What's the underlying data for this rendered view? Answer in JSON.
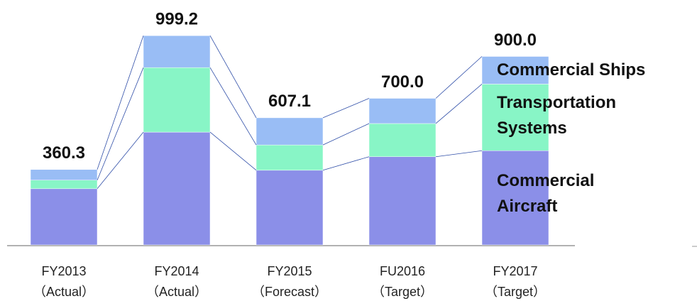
{
  "chart_data": {
    "type": "stacked-bar",
    "categories": [
      [
        "FY2013",
        "（Actual）"
      ],
      [
        "FY2014",
        "（Actual）"
      ],
      [
        "FY2015",
        "（Forecast）"
      ],
      [
        "FU2016",
        "（Target）"
      ],
      [
        "FY2017",
        "（Target）"
      ]
    ],
    "total_labels": [
      "360.3",
      "999.2",
      "607.1",
      "700.0",
      "900.0"
    ],
    "series": [
      {
        "name": "Commercial Aircraft",
        "color": "#8b8fe8",
        "values": [
          268.5,
          538.6,
          356.6,
          421.3,
          450.0
        ]
      },
      {
        "name": "Transportation Systems",
        "color": "#88f5c6",
        "values": [
          40.8,
          308.2,
          120.8,
          158.4,
          318.0
        ]
      },
      {
        "name": "Commercial Ships",
        "color": "#99bdf5",
        "values": [
          51.0,
          152.4,
          129.7,
          120.3,
          132.0
        ]
      }
    ],
    "ylim": [
      0,
      1000
    ]
  }
}
